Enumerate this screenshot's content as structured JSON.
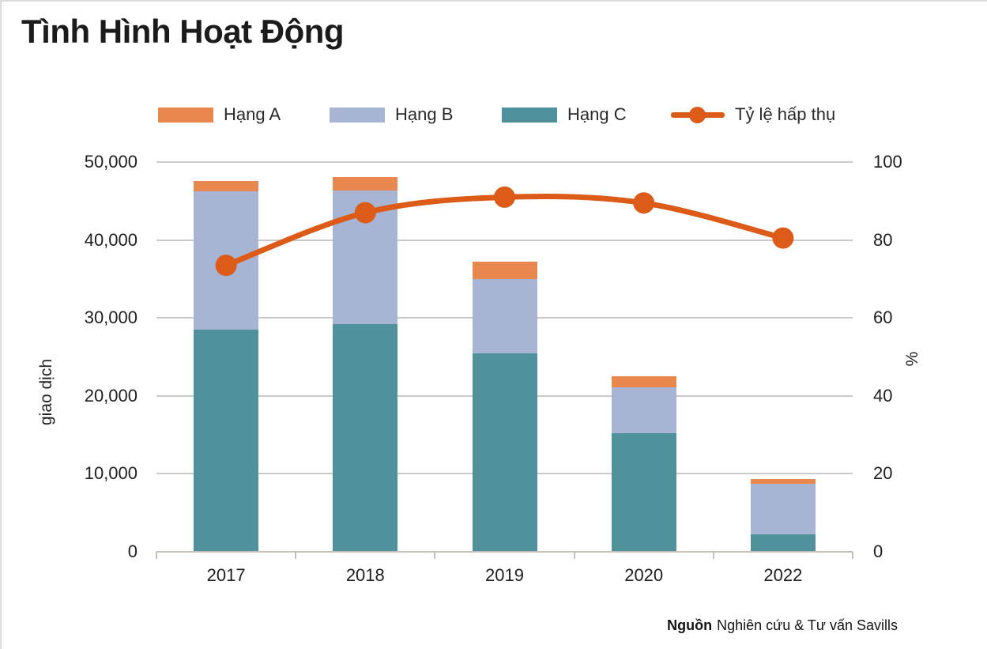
{
  "title": "Tình Hình Hoạt Động",
  "colors": {
    "hang_a": "#E8884F",
    "hang_b": "#A7B4D3",
    "hang_c": "#4F929B",
    "line": "#DC5B18",
    "grid": "#CACACA",
    "axis": "#C5BFB9",
    "title_text": "#1B1B1B"
  },
  "legend": [
    {
      "label": "Hạng A",
      "type": "swatch",
      "color_key": "hang_a"
    },
    {
      "label": "Hạng B",
      "type": "swatch",
      "color_key": "hang_b"
    },
    {
      "label": "Hạng C",
      "type": "swatch",
      "color_key": "hang_c"
    },
    {
      "label": "Tỷ lệ hấp thụ",
      "type": "line",
      "color_key": "line"
    }
  ],
  "chart_data": {
    "type": "combo-stacked-bar-line",
    "categories": [
      "2017",
      "2018",
      "2019",
      "2020",
      "2022"
    ],
    "bar_series": [
      {
        "name": "Hạng C",
        "color_key": "hang_c",
        "values": [
          28500,
          29200,
          25500,
          15250,
          2250
        ]
      },
      {
        "name": "Hạng B",
        "color_key": "hang_b",
        "values": [
          17700,
          17100,
          9450,
          5800,
          6500
        ]
      },
      {
        "name": "Hạng A",
        "color_key": "hang_a",
        "values": [
          1350,
          1750,
          2250,
          1500,
          600
        ]
      }
    ],
    "bar_totals": [
      47550,
      48050,
      37200,
      22550,
      9350
    ],
    "line_series": {
      "name": "Tỷ lệ hấp thụ",
      "color_key": "line",
      "axis": "right",
      "values": [
        73.5,
        87,
        91,
        89.5,
        80.5
      ]
    },
    "left_axis": {
      "label": "giao dịch",
      "min": 0,
      "max": 50000,
      "tick_labels": [
        "0",
        "10,000",
        "20,000",
        "30,000",
        "40,000",
        "50,000"
      ]
    },
    "right_axis": {
      "label": "%",
      "min": 0,
      "max": 100,
      "tick_labels": [
        "0",
        "20",
        "40",
        "60",
        "80",
        "100"
      ]
    },
    "grid": true,
    "legend_position": "top"
  },
  "source": {
    "label": "Nguồn",
    "text": "Nghiên cứu & Tư vấn Savills"
  }
}
